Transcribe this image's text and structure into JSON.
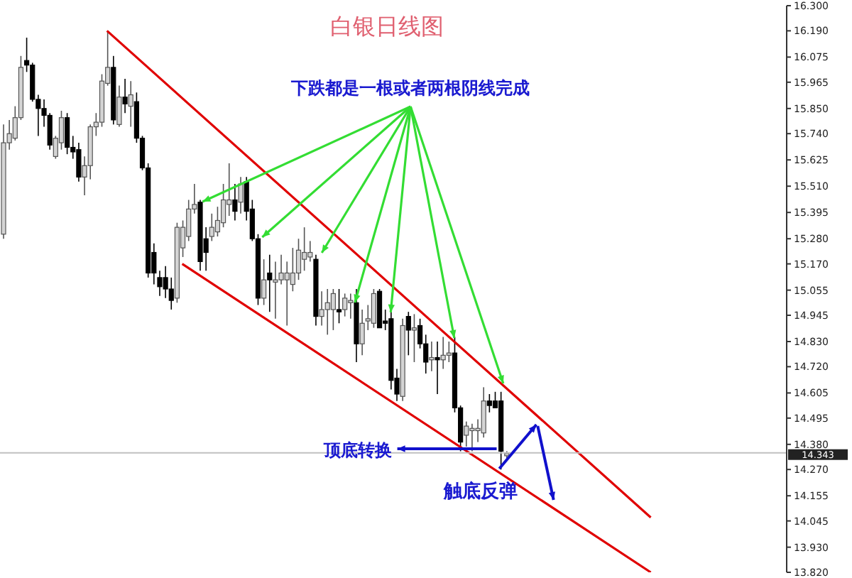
{
  "chart_data": {
    "type": "candlestick",
    "title": "白银日线图",
    "annotations": [
      "下跌都是一根或者两根阴线完成",
      "顶底转换",
      "触底反弹"
    ],
    "categories": [
      null,
      null,
      null,
      null,
      null,
      null,
      null,
      null,
      null,
      null,
      null,
      null,
      null,
      null,
      null,
      null,
      null,
      null,
      null,
      null,
      null,
      null,
      null,
      null,
      null,
      null,
      null,
      null,
      null,
      null,
      null,
      null,
      null,
      null,
      null,
      null,
      null,
      null,
      null,
      null,
      null,
      null,
      null,
      null,
      null,
      null,
      null,
      null,
      null,
      null,
      null,
      null,
      null,
      null,
      null,
      null,
      null,
      null,
      null,
      null,
      null,
      null,
      null,
      null,
      null,
      null,
      null,
      null,
      null,
      null,
      null,
      null,
      null,
      null,
      null,
      null,
      null,
      null,
      null,
      null,
      null,
      null,
      null,
      null,
      null,
      null,
      null,
      null,
      null,
      null,
      null,
      null,
      null,
      null,
      null,
      null,
      null,
      null,
      null,
      null,
      null,
      null,
      null,
      null,
      null,
      null,
      null,
      null,
      null,
      null,
      null,
      null,
      null,
      null,
      null,
      null,
      null,
      null,
      null,
      null,
      null,
      null,
      null,
      null,
      null,
      null,
      null,
      null,
      null,
      null,
      null,
      null,
      null,
      null,
      null,
      null
    ],
    "series": [
      {
        "type": "line",
        "color": "#e00000",
        "values": [
          null,
          null,
          null,
          null,
          null,
          null,
          null,
          null,
          null,
          null,
          null,
          null,
          null,
          null,
          null,
          null,
          null,
          null,
          16.19,
          null,
          null,
          null,
          null,
          null,
          null,
          null,
          null,
          null,
          null,
          null,
          null,
          null,
          null,
          null,
          null,
          null,
          null,
          null,
          null,
          null,
          null,
          null,
          null,
          null,
          null,
          null,
          null,
          null,
          null,
          null,
          null,
          null,
          null,
          null,
          null,
          null,
          null,
          null,
          null,
          null,
          null,
          null,
          null,
          null,
          null,
          null,
          null,
          null,
          null,
          null,
          null,
          null,
          null,
          null,
          null,
          null,
          null,
          null,
          null,
          null,
          null,
          null,
          null,
          null,
          null,
          null,
          null,
          null,
          null,
          null,
          null,
          null,
          null,
          null,
          null,
          null,
          null,
          null,
          null,
          null,
          null,
          null,
          null,
          null,
          null,
          null,
          null,
          null,
          null,
          null,
          null,
          null,
          14.06,
          null,
          null,
          null,
          null,
          null,
          null,
          null,
          null,
          null,
          null,
          null,
          null,
          null,
          null,
          null,
          null,
          null,
          null,
          null,
          null,
          null,
          null,
          null
        ]
      },
      {
        "type": "line",
        "color": "#e00000",
        "values": [
          null,
          null,
          null,
          null,
          null,
          null,
          null,
          null,
          null,
          null,
          null,
          null,
          null,
          null,
          null,
          null,
          null,
          null,
          null,
          null,
          null,
          null,
          null,
          null,
          null,
          null,
          null,
          null,
          null,
          null,
          null,
          15.17,
          null,
          null,
          null,
          null,
          null,
          null,
          null,
          null,
          null,
          null,
          null,
          null,
          null,
          null,
          null,
          null,
          null,
          null,
          null,
          null,
          null,
          null,
          null,
          null,
          null,
          null,
          null,
          null,
          null,
          null,
          null,
          null,
          null,
          null,
          null,
          null,
          null,
          null,
          null,
          null,
          null,
          null,
          null,
          null,
          null,
          null,
          null,
          null,
          null,
          null,
          null,
          null,
          null,
          null,
          null,
          null,
          null,
          null,
          null,
          null,
          null,
          null,
          null,
          null,
          null,
          null,
          null,
          null,
          null,
          null,
          null,
          null,
          null,
          null,
          null,
          null,
          null,
          null,
          null,
          null,
          13.82,
          null,
          null,
          null,
          null,
          null,
          null,
          null,
          null,
          null,
          null,
          null,
          null,
          null,
          null,
          null,
          null,
          null,
          null,
          null,
          null,
          null,
          null,
          null
        ]
      },
      {
        "ohlc": [
          [
            15.3,
            15.78,
            15.28,
            15.7
          ],
          [
            15.7,
            15.8,
            15.67,
            15.74
          ],
          [
            15.72,
            15.86,
            15.71,
            15.81
          ],
          [
            15.81,
            16.08,
            15.8,
            16.03
          ],
          [
            16.06,
            16.16,
            16.01,
            16.04
          ],
          [
            16.04,
            16.05,
            15.88,
            15.89
          ],
          [
            15.89,
            15.91,
            15.73,
            15.85
          ],
          [
            15.85,
            15.89,
            15.77,
            15.82
          ],
          [
            15.82,
            15.83,
            15.67,
            15.69
          ],
          [
            15.64,
            15.73,
            15.63,
            15.72
          ],
          [
            15.7,
            15.84,
            15.67,
            15.81
          ],
          [
            15.81,
            15.83,
            15.65,
            15.68
          ],
          [
            15.68,
            15.73,
            15.63,
            15.66
          ],
          [
            15.67,
            15.7,
            15.53,
            15.55
          ],
          [
            15.55,
            15.64,
            15.47,
            15.6
          ],
          [
            15.6,
            15.78,
            15.54,
            15.77
          ],
          [
            15.77,
            15.83,
            15.73,
            15.79
          ],
          [
            15.79,
            16.0,
            15.77,
            15.97
          ],
          [
            15.96,
            16.19,
            15.95,
            16.03
          ],
          [
            16.03,
            16.08,
            15.78,
            15.8
          ],
          [
            15.78,
            15.95,
            15.77,
            15.9
          ],
          [
            15.9,
            15.98,
            15.83,
            15.87
          ],
          [
            15.86,
            15.97,
            15.77,
            15.91
          ],
          [
            15.88,
            15.92,
            15.7,
            15.72
          ],
          [
            15.72,
            15.73,
            15.58,
            15.59
          ],
          [
            15.59,
            15.61,
            15.11,
            15.13
          ],
          [
            15.22,
            15.26,
            15.08,
            15.13
          ],
          [
            15.11,
            15.14,
            15.03,
            15.07
          ],
          [
            15.11,
            15.16,
            15.02,
            15.06
          ],
          [
            15.06,
            15.11,
            14.97,
            15.01
          ],
          [
            15.02,
            15.35,
            15.0,
            15.33
          ],
          [
            15.24,
            15.36,
            15.2,
            15.33
          ],
          [
            15.29,
            15.45,
            15.27,
            15.41
          ],
          [
            15.41,
            15.52,
            15.39,
            15.43
          ],
          [
            15.44,
            15.45,
            15.14,
            15.18
          ],
          [
            15.28,
            15.33,
            15.14,
            15.22
          ],
          [
            15.29,
            15.39,
            15.27,
            15.33
          ],
          [
            15.31,
            15.42,
            15.29,
            15.36
          ],
          [
            15.35,
            15.52,
            15.33,
            15.45
          ],
          [
            15.43,
            15.61,
            15.38,
            15.45
          ],
          [
            15.45,
            15.52,
            15.36,
            15.4
          ],
          [
            15.44,
            15.55,
            15.39,
            15.52
          ],
          [
            15.53,
            15.55,
            15.36,
            15.4
          ],
          [
            15.41,
            15.45,
            15.27,
            15.28
          ],
          [
            15.28,
            15.3,
            14.99,
            15.02
          ],
          [
            15.02,
            15.19,
            14.99,
            15.1
          ],
          [
            15.13,
            15.21,
            14.96,
            15.1
          ],
          [
            15.09,
            15.18,
            14.93,
            15.1
          ],
          [
            15.1,
            15.21,
            15.08,
            15.13
          ],
          [
            15.1,
            15.18,
            14.9,
            15.13
          ],
          [
            15.08,
            15.24,
            15.05,
            15.13
          ],
          [
            15.13,
            15.28,
            15.1,
            15.23
          ],
          [
            15.19,
            15.33,
            15.14,
            15.22
          ],
          [
            15.2,
            15.27,
            15.18,
            15.22
          ],
          [
            15.19,
            15.21,
            14.9,
            14.94
          ],
          [
            14.94,
            15.05,
            14.9,
            14.97
          ],
          [
            14.97,
            15.06,
            14.86,
            15.0
          ],
          [
            14.97,
            15.06,
            14.88,
            15.04
          ],
          [
            14.97,
            15.06,
            14.91,
            14.96
          ],
          [
            14.97,
            15.04,
            14.94,
            15.02
          ],
          [
            15.0,
            15.04,
            14.93,
            15.01
          ],
          [
            15.0,
            15.06,
            14.74,
            14.82
          ],
          [
            14.82,
            14.97,
            14.77,
            14.91
          ],
          [
            14.92,
            14.99,
            14.88,
            14.93
          ],
          [
            14.91,
            15.06,
            14.89,
            15.04
          ],
          [
            15.05,
            15.06,
            14.89,
            14.89
          ],
          [
            14.92,
            14.97,
            14.88,
            14.91
          ],
          [
            14.93,
            14.96,
            14.62,
            14.66
          ],
          [
            14.67,
            14.71,
            14.57,
            14.6
          ],
          [
            14.59,
            14.93,
            14.57,
            14.9
          ],
          [
            14.94,
            14.96,
            14.77,
            14.88
          ],
          [
            14.88,
            14.95,
            14.74,
            14.89
          ],
          [
            14.9,
            14.93,
            14.8,
            14.82
          ],
          [
            14.82,
            14.86,
            14.69,
            14.74
          ],
          [
            14.75,
            14.83,
            14.7,
            14.76
          ],
          [
            14.76,
            14.83,
            14.6,
            14.75
          ],
          [
            14.75,
            14.85,
            14.71,
            14.77
          ],
          [
            14.77,
            14.83,
            14.74,
            14.78
          ],
          [
            14.78,
            14.85,
            14.52,
            14.54
          ],
          [
            14.54,
            14.55,
            14.35,
            14.39
          ],
          [
            14.42,
            14.48,
            14.37,
            14.46
          ],
          [
            14.44,
            14.47,
            14.35,
            14.45
          ],
          [
            14.44,
            14.49,
            14.39,
            14.45
          ],
          [
            14.43,
            14.63,
            14.41,
            14.57
          ],
          [
            14.57,
            14.6,
            14.52,
            14.55
          ],
          [
            14.57,
            14.61,
            14.54,
            14.54
          ],
          [
            14.57,
            14.61,
            14.27,
            14.35
          ],
          [
            14.33,
            14.35,
            14.32,
            14.34
          ],
          null,
          null,
          null,
          null,
          null,
          null,
          null,
          null,
          null,
          null,
          null,
          null,
          null,
          null,
          null,
          null,
          null,
          null,
          null,
          null,
          null,
          null,
          null,
          null,
          null,
          null,
          null,
          null,
          null,
          null,
          null,
          null,
          null,
          null,
          null,
          null,
          null,
          null,
          null,
          null,
          null,
          null,
          null,
          null,
          null,
          null,
          null,
          null
        ]
      }
    ],
    "ylim": [
      13.82,
      16.3
    ],
    "yticks": [
      {
        "value": 16.3,
        "label": "16.300"
      },
      {
        "value": 16.19,
        "label": "16.190"
      },
      {
        "value": 16.075,
        "label": "16.075"
      },
      {
        "value": 15.965,
        "label": "15.965"
      },
      {
        "value": 15.85,
        "label": "15.850"
      },
      {
        "value": 15.74,
        "label": "15.740"
      },
      {
        "value": 15.625,
        "label": "15.625"
      },
      {
        "value": 15.51,
        "label": "15.510"
      },
      {
        "value": 15.395,
        "label": "15.395"
      },
      {
        "value": 15.28,
        "label": "15.280"
      },
      {
        "value": 15.17,
        "label": "15.170"
      },
      {
        "value": 15.055,
        "label": "15.055"
      },
      {
        "value": 14.945,
        "label": "14.945"
      },
      {
        "value": 14.83,
        "label": "14.830"
      },
      {
        "value": 14.72,
        "label": "14.720"
      },
      {
        "value": 14.605,
        "label": "14.605"
      },
      {
        "value": 14.495,
        "label": "14.495"
      },
      {
        "value": 14.38,
        "label": "14.380"
      },
      {
        "value": 14.27,
        "label": "14.270"
      },
      {
        "value": 14.155,
        "label": "14.155"
      },
      {
        "value": 14.045,
        "label": "14.045"
      },
      {
        "value": 13.93,
        "label": "13.930"
      },
      {
        "value": 13.82,
        "label": "13.820"
      }
    ],
    "ref_lines": [
      {
        "axis": "y",
        "value": 14.343,
        "label": "14.343",
        "color": "#c0c0c0"
      }
    ],
    "tick_labels": "y"
  }
}
